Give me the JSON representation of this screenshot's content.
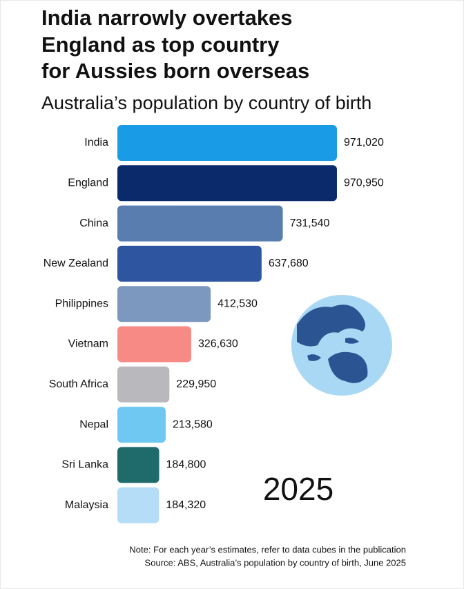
{
  "chart_data": {
    "type": "bar",
    "orientation": "horizontal",
    "title": [
      "India narrowly overtakes",
      "England as top country",
      "for Aussies born overseas"
    ],
    "subtitle": "Australia’s population by country of birth",
    "categories": [
      "India",
      "England",
      "China",
      "New Zealand",
      "Philippines",
      "Vietnam",
      "South Africa",
      "Nepal",
      "Sri Lanka",
      "Malaysia"
    ],
    "values": [
      971020,
      970950,
      731540,
      637680,
      412530,
      326630,
      229950,
      213580,
      184800,
      184320
    ],
    "value_labels": [
      "971,020",
      "970,950",
      "731,540",
      "637,680",
      "412,530",
      "326,630",
      "229,950",
      "213,580",
      "184,800",
      "184,320"
    ],
    "colors": [
      "#1a9be6",
      "#0b2a6b",
      "#5a7db0",
      "#2e55a0",
      "#7d98bf",
      "#f78a84",
      "#b8b8bd",
      "#6ec8f2",
      "#1f6b6b",
      "#b5ddf7"
    ],
    "annotation": "2025",
    "note": "Note: For each year’s estimates, refer to data cubes in the publication",
    "source": "Source: ABS, Australia’s population by country of birth, June 2025"
  }
}
